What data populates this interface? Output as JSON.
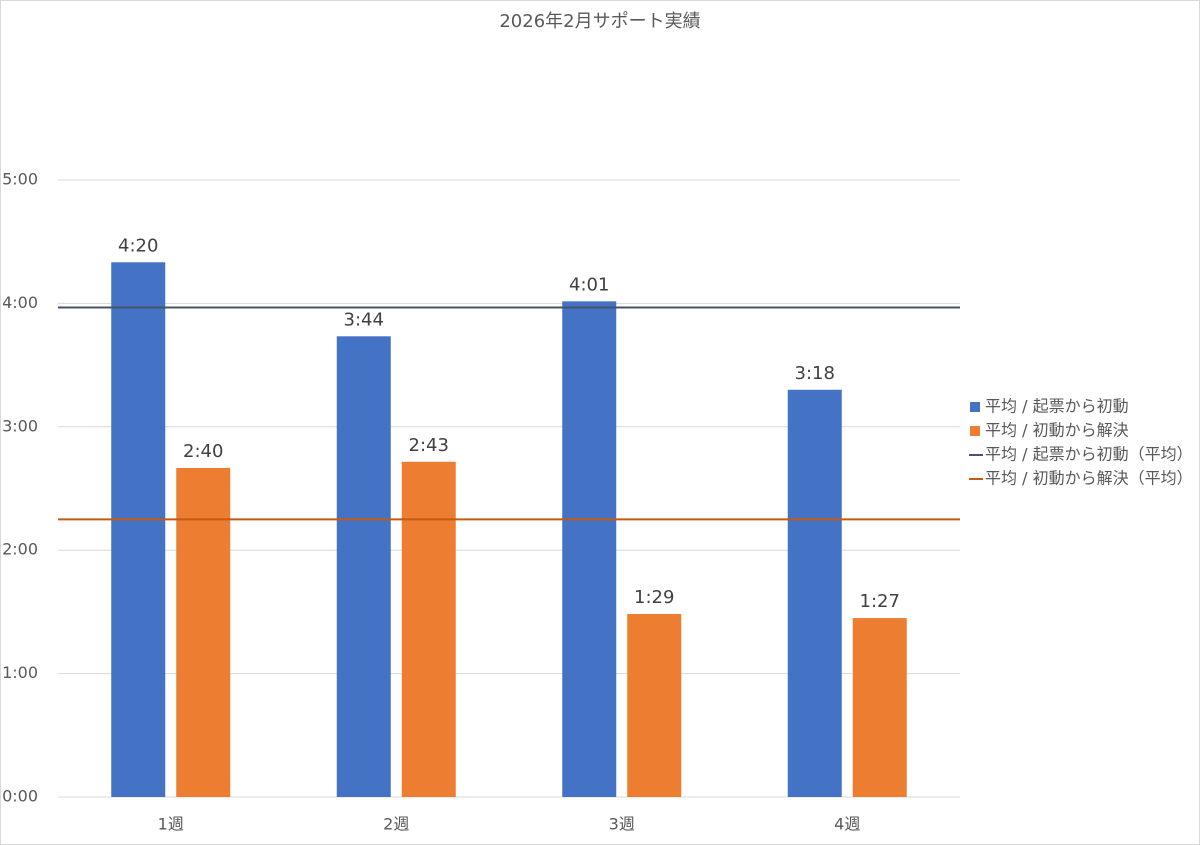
{
  "chart_data": {
    "type": "bar",
    "title": "2026年2月サポート実績",
    "categories": [
      "1週",
      "2週",
      "3週",
      "4週"
    ],
    "series": [
      {
        "name": "平均 / 起票から初動",
        "type": "bar",
        "color": "#4472c4",
        "values": [
          260,
          224,
          241,
          198
        ],
        "value_labels": [
          "4:20",
          "3:44",
          "4:01",
          "3:18"
        ]
      },
      {
        "name": "平均 / 初動から解決",
        "type": "bar",
        "color": "#ed7d31",
        "values": [
          160,
          163,
          89,
          87
        ],
        "value_labels": [
          "2:40",
          "2:43",
          "1:29",
          "1:27"
        ]
      },
      {
        "name": "平均 / 起票から初動（平均）",
        "type": "line",
        "color": "#44546a",
        "values": [
          238,
          238,
          238,
          238
        ]
      },
      {
        "name": "平均 / 初動から解決（平均）",
        "type": "line",
        "color": "#c55a11",
        "values": [
          135,
          135,
          135,
          135
        ]
      }
    ],
    "ylim": [
      0,
      300
    ],
    "yticks": [
      {
        "value": 0,
        "label": "0:00"
      },
      {
        "value": 60,
        "label": "1:00"
      },
      {
        "value": 120,
        "label": "2:00"
      },
      {
        "value": 180,
        "label": "3:00"
      },
      {
        "value": 240,
        "label": "4:00"
      },
      {
        "value": 300,
        "label": "5:00"
      }
    ],
    "grid": true,
    "legend": "right"
  }
}
